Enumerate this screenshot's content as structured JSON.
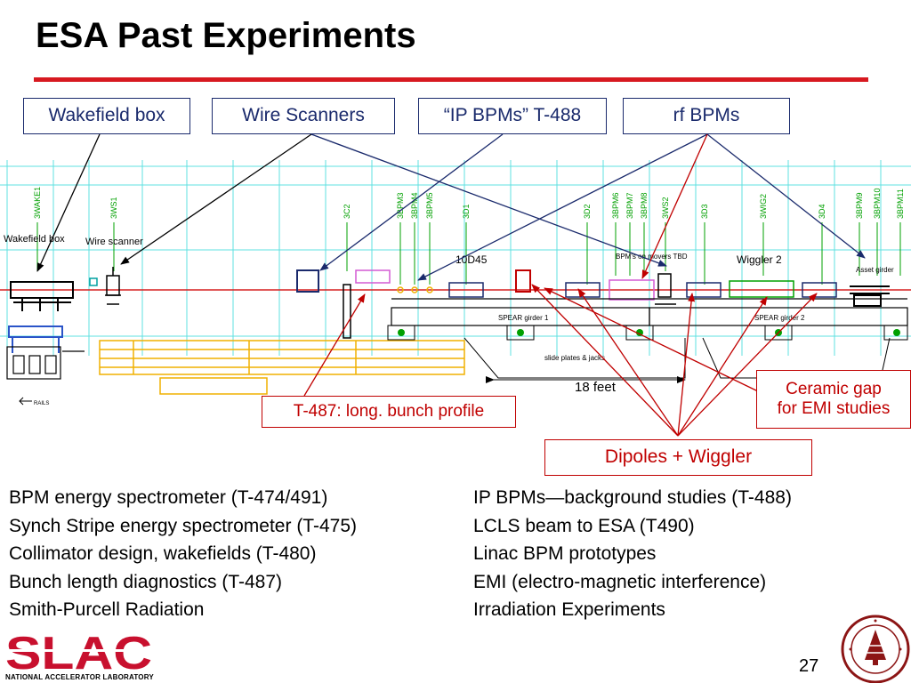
{
  "title": "ESA Past Experiments",
  "callouts": {
    "wakefield_box": "Wakefield box",
    "wire_scanners": "Wire Scanners",
    "ip_bpms": "“IP BPMs” T-488",
    "rf_bpms": "rf BPMs",
    "t487": "T-487:  long. bunch profile",
    "ceramic_gap_line1": "Ceramic gap",
    "ceramic_gap_line2": "for EMI studies",
    "dipoles": "Dipoles + Wiggler"
  },
  "diagram": {
    "stations": [
      "3WAKE1",
      "3WS1",
      "3C2",
      "3BPM3",
      "3BPM4",
      "3BPM5",
      "3D1",
      "3D2",
      "3BPM6",
      "3BPM7",
      "3BPM8",
      "3WS2",
      "3D3",
      "3WIG2",
      "3D4",
      "3BPM9",
      "3BPM10",
      "3BPM11"
    ],
    "labels": {
      "wakefield_box": "Wakefield box",
      "wire_scanner": "Wire scanner",
      "magnet": "10D45",
      "bpms_movers": "BPM's on movers TBD",
      "wiggler": "Wiggler 2",
      "asset_girder": "Asset girder",
      "spear1": "SPEAR girder 1",
      "spear2": "SPEAR girder 2",
      "slide_plates": "slide plates & jacks",
      "scale": "18 feet",
      "rails": "RAILS"
    },
    "colors": {
      "grid": "#5fe0e0",
      "beam": "#d62020",
      "orange": "#f0b000",
      "green": "#00a000",
      "navy": "#1a2a6c",
      "red": "#c00000"
    }
  },
  "left_list": [
    "BPM energy spectrometer (T-474/491)",
    "Synch Stripe energy spectrometer (T-475)",
    "Collimator design, wakefields (T-480)",
    "Bunch length diagnostics (T-487)",
    "Smith-Purcell Radiation"
  ],
  "right_list": [
    "IP BPMs—background studies (T-488)",
    "LCLS beam to ESA (T490)",
    "Linac BPM prototypes",
    "EMI (electro-magnetic interference)",
    "Irradiation Experiments"
  ],
  "footer": {
    "logo": "SLAC",
    "logo_subtitle": "NATIONAL ACCELERATOR LABORATORY",
    "page_number": "27",
    "seal_text": "LELAND STANFORD JUNIOR UNIVERSITY"
  }
}
